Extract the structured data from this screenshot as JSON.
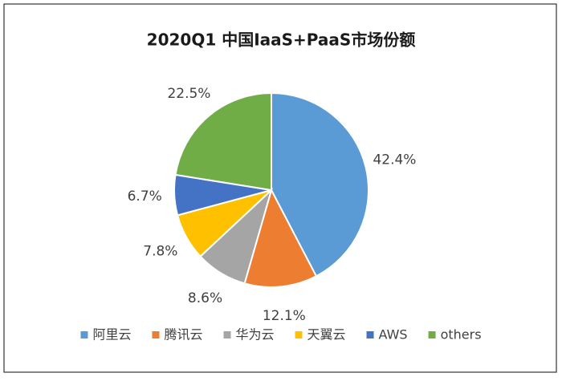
{
  "chart_data": {
    "type": "pie",
    "title": "2020Q1 中国IaaS+PaaS市场份额",
    "categories": [
      "阿里云",
      "腾讯云",
      "华为云",
      "天翼云",
      "AWS",
      "others"
    ],
    "values": [
      42.4,
      12.1,
      8.6,
      7.8,
      6.7,
      22.5
    ],
    "value_labels": [
      "42.4%",
      "12.1%",
      "8.6%",
      "7.8%",
      "6.7%",
      "22.5%"
    ],
    "colors": [
      "#5b9bd5",
      "#ed7d31",
      "#a5a5a5",
      "#ffc000",
      "#4472c4",
      "#70ad47"
    ],
    "legend": "bottom"
  }
}
